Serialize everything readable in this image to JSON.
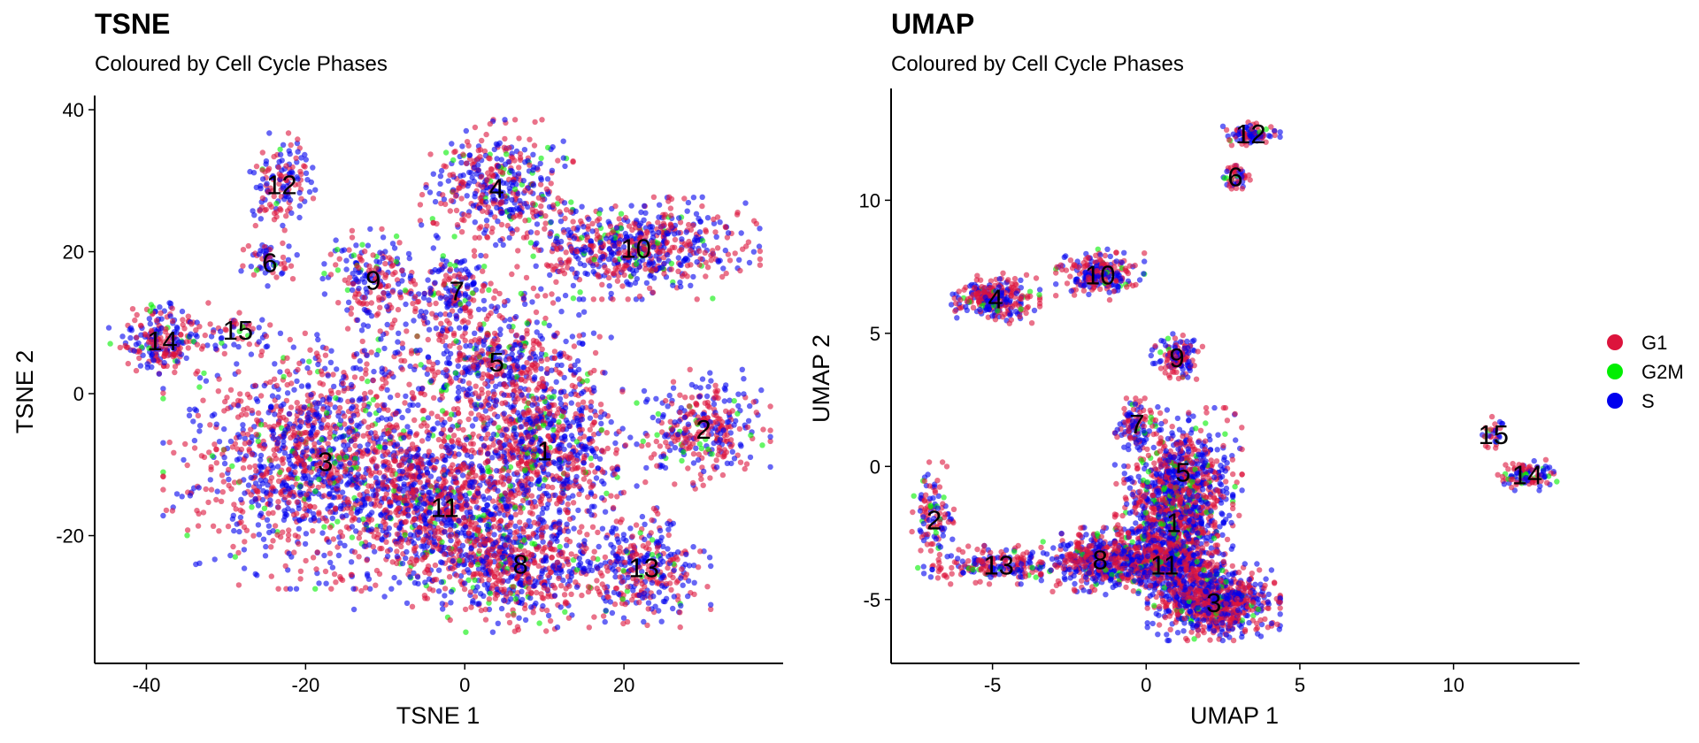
{
  "colors": {
    "G1": "#DC143C",
    "G2M": "#00EE00",
    "S": "#0000EE"
  },
  "legend": [
    {
      "name": "G1",
      "label": "G1",
      "color": "#DC143C"
    },
    {
      "name": "G2M",
      "label": "G2M",
      "color": "#00EE00"
    },
    {
      "name": "S",
      "label": "S",
      "color": "#0000EE"
    }
  ],
  "chart_data": [
    {
      "type": "scatter",
      "title": "TSNE",
      "subtitle": "Coloured by Cell Cycle Phases",
      "xlabel": "TSNE 1",
      "ylabel": "TSNE 2",
      "xlim": [
        -46.5,
        40
      ],
      "ylim": [
        -38,
        42
      ],
      "xticks": [
        -40,
        -20,
        0,
        20
      ],
      "yticks": [
        -20,
        0,
        20,
        40
      ],
      "series": [
        {
          "name": "G1",
          "color": "#DC143C"
        },
        {
          "name": "G2M",
          "color": "#00EE00"
        },
        {
          "name": "S",
          "color": "#0000EE"
        }
      ],
      "clusters": [
        {
          "label": "1",
          "x": 10,
          "y": -8,
          "sx": 4.5,
          "sy": 5,
          "n": 700
        },
        {
          "label": "2",
          "x": 30,
          "y": -5,
          "sx": 3.5,
          "sy": 3.5,
          "n": 320
        },
        {
          "label": "3",
          "x": -17.5,
          "y": -9.5,
          "sx": 8.5,
          "sy": 7.5,
          "n": 1500
        },
        {
          "label": "4",
          "x": 4,
          "y": 29,
          "sx": 4,
          "sy": 4,
          "n": 420
        },
        {
          "label": "5",
          "x": 4,
          "y": 4.5,
          "sx": 6,
          "sy": 4,
          "n": 520
        },
        {
          "label": "6",
          "x": -24.5,
          "y": 18.5,
          "sx": 1.5,
          "sy": 1.4,
          "n": 60
        },
        {
          "label": "7",
          "x": -1,
          "y": 14.5,
          "sx": 2.5,
          "sy": 2.5,
          "n": 170
        },
        {
          "label": "8",
          "x": 7,
          "y": -24,
          "sx": 5,
          "sy": 4,
          "n": 600
        },
        {
          "label": "9",
          "x": -11.5,
          "y": 16,
          "sx": 3,
          "sy": 3,
          "n": 200
        },
        {
          "label": "10",
          "x": 21.5,
          "y": 20.5,
          "sx": 6.5,
          "sy": 3,
          "n": 650
        },
        {
          "label": "11",
          "x": -2.5,
          "y": -16,
          "sx": 6,
          "sy": 6,
          "n": 900
        },
        {
          "label": "12",
          "x": -23,
          "y": 29.5,
          "sx": 2,
          "sy": 3,
          "n": 140
        },
        {
          "label": "13",
          "x": 22.5,
          "y": -24.5,
          "sx": 3.5,
          "sy": 3.5,
          "n": 330
        },
        {
          "label": "14",
          "x": -38,
          "y": 7.5,
          "sx": 2.8,
          "sy": 2.2,
          "n": 230
        },
        {
          "label": "15",
          "x": -28.5,
          "y": 9,
          "sx": 2,
          "sy": 1,
          "n": 40
        }
      ]
    },
    {
      "type": "scatter",
      "title": "UMAP",
      "subtitle": "Coloured by Cell Cycle Phases",
      "xlabel": "UMAP 1",
      "ylabel": "UMAP 2",
      "xlim": [
        -8.3,
        14.1
      ],
      "ylim": [
        -7.4,
        14.2
      ],
      "xticks": [
        -5,
        0,
        5,
        10
      ],
      "yticks": [
        -5,
        0,
        5,
        10
      ],
      "series": [
        {
          "name": "G1",
          "color": "#DC143C"
        },
        {
          "name": "G2M",
          "color": "#00EE00"
        },
        {
          "name": "S",
          "color": "#0000EE"
        }
      ],
      "clusters": [
        {
          "label": "1",
          "x": 0.9,
          "y": -2.1,
          "sx": 0.8,
          "sy": 0.9,
          "n": 700
        },
        {
          "label": "2",
          "x": -6.9,
          "y": -2.0,
          "sx": 0.3,
          "sy": 0.9,
          "n": 120
        },
        {
          "label": "3",
          "x": 2.2,
          "y": -5.1,
          "sx": 0.9,
          "sy": 0.6,
          "n": 800
        },
        {
          "label": "4",
          "x": -4.9,
          "y": 6.3,
          "sx": 0.6,
          "sy": 0.4,
          "n": 280
        },
        {
          "label": "5",
          "x": 1.2,
          "y": -0.2,
          "sx": 0.8,
          "sy": 1.0,
          "n": 500
        },
        {
          "label": "6",
          "x": 2.9,
          "y": 10.9,
          "sx": 0.2,
          "sy": 0.3,
          "n": 50
        },
        {
          "label": "7",
          "x": -0.3,
          "y": 1.6,
          "sx": 0.3,
          "sy": 0.4,
          "n": 100
        },
        {
          "label": "8",
          "x": -1.5,
          "y": -3.5,
          "sx": 0.8,
          "sy": 0.5,
          "n": 450
        },
        {
          "label": "9",
          "x": 1.0,
          "y": 4.1,
          "sx": 0.35,
          "sy": 0.4,
          "n": 130
        },
        {
          "label": "10",
          "x": -1.5,
          "y": 7.2,
          "sx": 0.6,
          "sy": 0.4,
          "n": 230
        },
        {
          "label": "11",
          "x": 0.6,
          "y": -3.7,
          "sx": 0.8,
          "sy": 0.5,
          "n": 600
        },
        {
          "label": "12",
          "x": 3.4,
          "y": 12.5,
          "sx": 0.4,
          "sy": 0.18,
          "n": 90
        },
        {
          "label": "13",
          "x": -4.8,
          "y": -3.7,
          "sx": 0.9,
          "sy": 0.3,
          "n": 200
        },
        {
          "label": "14",
          "x": 12.4,
          "y": -0.3,
          "sx": 0.4,
          "sy": 0.25,
          "n": 100
        },
        {
          "label": "15",
          "x": 11.3,
          "y": 1.2,
          "sx": 0.15,
          "sy": 0.3,
          "n": 30
        }
      ]
    }
  ]
}
